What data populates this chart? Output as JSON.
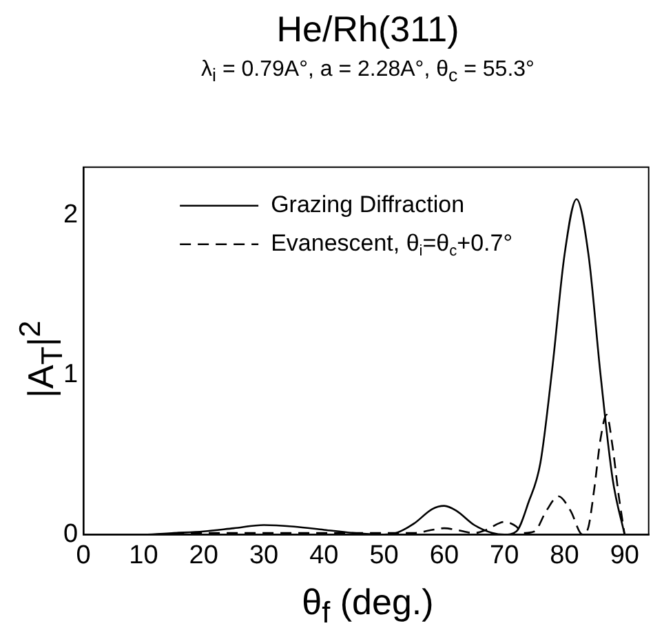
{
  "chart_data": {
    "type": "line",
    "title": "He/Rh(311)",
    "subtitle": "λ$_{i}$ = 0.79A°,  a = 2.28A°, θ$_{c}$ = 55.3°",
    "xlabel": "θ$_{f}$  (deg.)",
    "ylabel": "|A$_{T}$|$^{2}$",
    "xlim": [
      0,
      94
    ],
    "xticks": [
      0,
      10,
      20,
      30,
      40,
      50,
      60,
      70,
      80,
      90
    ],
    "ylim": [
      0,
      2.3
    ],
    "yticks": [
      0,
      1,
      2
    ],
    "grid": false,
    "legend": "top left",
    "marker": "none",
    "series": [
      {
        "name": "Grazing Diffraction",
        "color": "#000000",
        "line_style": "solid",
        "x": [
          0,
          5,
          10,
          15,
          20,
          25,
          30,
          35,
          40,
          45,
          50,
          52,
          55,
          58,
          60,
          62,
          65,
          68,
          70,
          72,
          74,
          76,
          78,
          80,
          82,
          84,
          86,
          88,
          90
        ],
        "values": [
          0,
          0,
          0,
          0.01,
          0.02,
          0.04,
          0.06,
          0.05,
          0.03,
          0.01,
          0,
          0.01,
          0.07,
          0.16,
          0.18,
          0.15,
          0.06,
          0.01,
          0,
          0.02,
          0.2,
          0.45,
          1.05,
          1.75,
          2.1,
          1.75,
          1.0,
          0.35,
          0
        ]
      },
      {
        "name": "Evanescent, θ$_{i}$=θ$_{c}$+0.7°",
        "color": "#000000",
        "line_style": "dashed",
        "x": [
          0,
          10,
          20,
          30,
          40,
          45,
          50,
          55,
          58,
          60,
          62,
          65,
          67,
          70,
          72,
          73,
          75,
          77,
          79,
          81,
          83,
          84,
          85,
          86,
          87,
          88,
          89,
          90
        ],
        "values": [
          0,
          0,
          0.01,
          0.01,
          0.01,
          0.01,
          0.01,
          0.01,
          0.03,
          0.04,
          0.03,
          0.01,
          0.03,
          0.08,
          0.05,
          0.01,
          0.02,
          0.15,
          0.24,
          0.15,
          0,
          0.05,
          0.3,
          0.6,
          0.75,
          0.55,
          0.25,
          0
        ]
      }
    ]
  }
}
